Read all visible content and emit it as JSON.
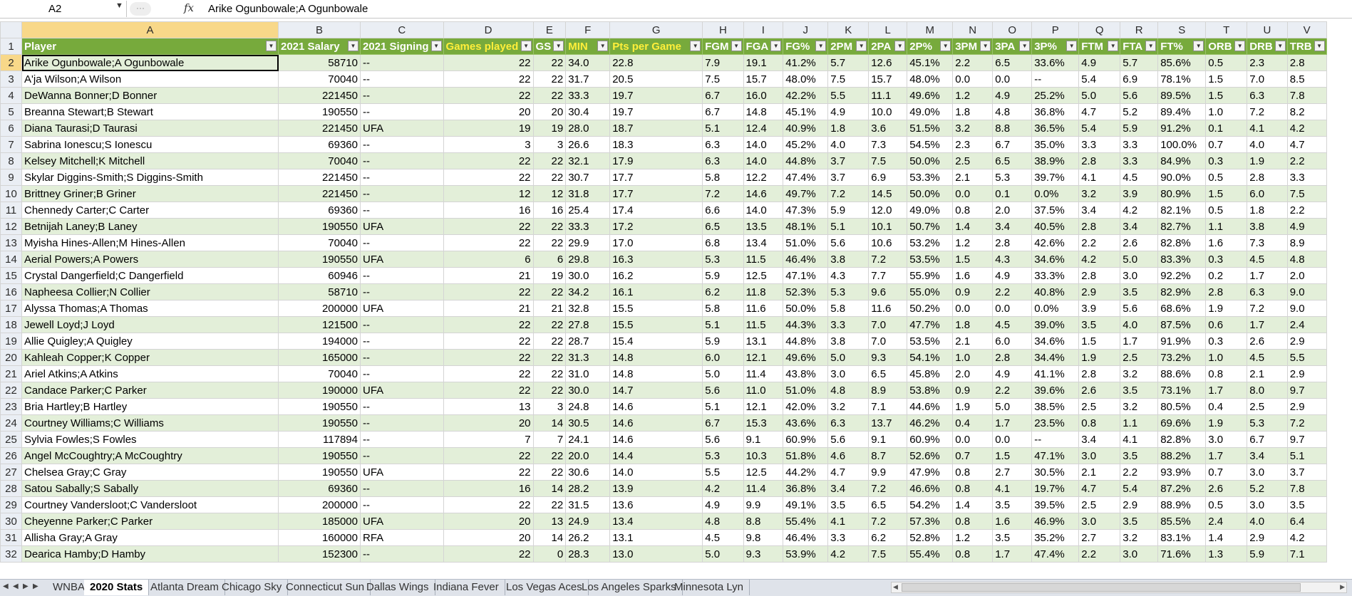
{
  "name_box": "A2",
  "formula_dots": "···",
  "fx_label": "fx",
  "formula_text": "Arike Ogunbowale;A Ogunbowale",
  "col_letters": [
    "A",
    "B",
    "C",
    "D",
    "E",
    "F",
    "G",
    "H",
    "I",
    "J",
    "K",
    "L",
    "M",
    "N",
    "O",
    "P",
    "Q",
    "R",
    "S",
    "T",
    "U",
    "V"
  ],
  "headers": [
    "Player",
    "2021 Salary",
    "2021 Signing",
    "Games played",
    "GS",
    "MIN",
    "Pts per Game",
    "FGM",
    "FGA",
    "FG%",
    "2PM",
    "2PA",
    "2P%",
    "3PM",
    "3PA",
    "3P%",
    "FTM",
    "FTA",
    "FT%",
    "ORB",
    "DRB",
    "TRB"
  ],
  "yellow_headers": [
    3,
    5,
    6
  ],
  "rows": [
    [
      "Arike Ogunbowale;A Ogunbowale",
      "58710",
      "--",
      "22",
      "22",
      "34.0",
      "22.8",
      "7.9",
      "19.1",
      "41.2%",
      "5.7",
      "12.6",
      "45.1%",
      "2.2",
      "6.5",
      "33.6%",
      "4.9",
      "5.7",
      "85.6%",
      "0.5",
      "2.3",
      "2.8"
    ],
    [
      "A'ja Wilson;A Wilson",
      "70040",
      "--",
      "22",
      "22",
      "31.7",
      "20.5",
      "7.5",
      "15.7",
      "48.0%",
      "7.5",
      "15.7",
      "48.0%",
      "0.0",
      "0.0",
      "--",
      "5.4",
      "6.9",
      "78.1%",
      "1.5",
      "7.0",
      "8.5"
    ],
    [
      "DeWanna Bonner;D Bonner",
      "221450",
      "--",
      "22",
      "22",
      "33.3",
      "19.7",
      "6.7",
      "16.0",
      "42.2%",
      "5.5",
      "11.1",
      "49.6%",
      "1.2",
      "4.9",
      "25.2%",
      "5.0",
      "5.6",
      "89.5%",
      "1.5",
      "6.3",
      "7.8"
    ],
    [
      "Breanna Stewart;B Stewart",
      "190550",
      "--",
      "20",
      "20",
      "30.4",
      "19.7",
      "6.7",
      "14.8",
      "45.1%",
      "4.9",
      "10.0",
      "49.0%",
      "1.8",
      "4.8",
      "36.8%",
      "4.7",
      "5.2",
      "89.4%",
      "1.0",
      "7.2",
      "8.2"
    ],
    [
      "Diana Taurasi;D Taurasi",
      "221450",
      "UFA",
      "19",
      "19",
      "28.0",
      "18.7",
      "5.1",
      "12.4",
      "40.9%",
      "1.8",
      "3.6",
      "51.5%",
      "3.2",
      "8.8",
      "36.5%",
      "5.4",
      "5.9",
      "91.2%",
      "0.1",
      "4.1",
      "4.2"
    ],
    [
      "Sabrina Ionescu;S Ionescu",
      "69360",
      "--",
      "3",
      "3",
      "26.6",
      "18.3",
      "6.3",
      "14.0",
      "45.2%",
      "4.0",
      "7.3",
      "54.5%",
      "2.3",
      "6.7",
      "35.0%",
      "3.3",
      "3.3",
      "100.0%",
      "0.7",
      "4.0",
      "4.7"
    ],
    [
      "Kelsey Mitchell;K Mitchell",
      "70040",
      "--",
      "22",
      "22",
      "32.1",
      "17.9",
      "6.3",
      "14.0",
      "44.8%",
      "3.7",
      "7.5",
      "50.0%",
      "2.5",
      "6.5",
      "38.9%",
      "2.8",
      "3.3",
      "84.9%",
      "0.3",
      "1.9",
      "2.2"
    ],
    [
      "Skylar Diggins-Smith;S Diggins-Smith",
      "221450",
      "--",
      "22",
      "22",
      "30.7",
      "17.7",
      "5.8",
      "12.2",
      "47.4%",
      "3.7",
      "6.9",
      "53.3%",
      "2.1",
      "5.3",
      "39.7%",
      "4.1",
      "4.5",
      "90.0%",
      "0.5",
      "2.8",
      "3.3"
    ],
    [
      "Brittney Griner;B Griner",
      "221450",
      "--",
      "12",
      "12",
      "31.8",
      "17.7",
      "7.2",
      "14.6",
      "49.7%",
      "7.2",
      "14.5",
      "50.0%",
      "0.0",
      "0.1",
      "0.0%",
      "3.2",
      "3.9",
      "80.9%",
      "1.5",
      "6.0",
      "7.5"
    ],
    [
      "Chennedy Carter;C Carter",
      "69360",
      "--",
      "16",
      "16",
      "25.4",
      "17.4",
      "6.6",
      "14.0",
      "47.3%",
      "5.9",
      "12.0",
      "49.0%",
      "0.8",
      "2.0",
      "37.5%",
      "3.4",
      "4.2",
      "82.1%",
      "0.5",
      "1.8",
      "2.2"
    ],
    [
      "Betnijah Laney;B Laney",
      "190550",
      "UFA",
      "22",
      "22",
      "33.3",
      "17.2",
      "6.5",
      "13.5",
      "48.1%",
      "5.1",
      "10.1",
      "50.7%",
      "1.4",
      "3.4",
      "40.5%",
      "2.8",
      "3.4",
      "82.7%",
      "1.1",
      "3.8",
      "4.9"
    ],
    [
      "Myisha Hines-Allen;M Hines-Allen",
      "70040",
      "--",
      "22",
      "22",
      "29.9",
      "17.0",
      "6.8",
      "13.4",
      "51.0%",
      "5.6",
      "10.6",
      "53.2%",
      "1.2",
      "2.8",
      "42.6%",
      "2.2",
      "2.6",
      "82.8%",
      "1.6",
      "7.3",
      "8.9"
    ],
    [
      "Aerial Powers;A Powers",
      "190550",
      "UFA",
      "6",
      "6",
      "29.8",
      "16.3",
      "5.3",
      "11.5",
      "46.4%",
      "3.8",
      "7.2",
      "53.5%",
      "1.5",
      "4.3",
      "34.6%",
      "4.2",
      "5.0",
      "83.3%",
      "0.3",
      "4.5",
      "4.8"
    ],
    [
      "Crystal Dangerfield;C Dangerfield",
      "60946",
      "--",
      "21",
      "19",
      "30.0",
      "16.2",
      "5.9",
      "12.5",
      "47.1%",
      "4.3",
      "7.7",
      "55.9%",
      "1.6",
      "4.9",
      "33.3%",
      "2.8",
      "3.0",
      "92.2%",
      "0.2",
      "1.7",
      "2.0"
    ],
    [
      "Napheesa Collier;N Collier",
      "58710",
      "--",
      "22",
      "22",
      "34.2",
      "16.1",
      "6.2",
      "11.8",
      "52.3%",
      "5.3",
      "9.6",
      "55.0%",
      "0.9",
      "2.2",
      "40.8%",
      "2.9",
      "3.5",
      "82.9%",
      "2.8",
      "6.3",
      "9.0"
    ],
    [
      "Alyssa Thomas;A Thomas",
      "200000",
      "UFA",
      "21",
      "21",
      "32.8",
      "15.5",
      "5.8",
      "11.6",
      "50.0%",
      "5.8",
      "11.6",
      "50.2%",
      "0.0",
      "0.0",
      "0.0%",
      "3.9",
      "5.6",
      "68.6%",
      "1.9",
      "7.2",
      "9.0"
    ],
    [
      "Jewell Loyd;J Loyd",
      "121500",
      "--",
      "22",
      "22",
      "27.8",
      "15.5",
      "5.1",
      "11.5",
      "44.3%",
      "3.3",
      "7.0",
      "47.7%",
      "1.8",
      "4.5",
      "39.0%",
      "3.5",
      "4.0",
      "87.5%",
      "0.6",
      "1.7",
      "2.4"
    ],
    [
      "Allie Quigley;A Quigley",
      "194000",
      "--",
      "22",
      "22",
      "28.7",
      "15.4",
      "5.9",
      "13.1",
      "44.8%",
      "3.8",
      "7.0",
      "53.5%",
      "2.1",
      "6.0",
      "34.6%",
      "1.5",
      "1.7",
      "91.9%",
      "0.3",
      "2.6",
      "2.9"
    ],
    [
      "Kahleah Copper;K Copper",
      "165000",
      "--",
      "22",
      "22",
      "31.3",
      "14.8",
      "6.0",
      "12.1",
      "49.6%",
      "5.0",
      "9.3",
      "54.1%",
      "1.0",
      "2.8",
      "34.4%",
      "1.9",
      "2.5",
      "73.2%",
      "1.0",
      "4.5",
      "5.5"
    ],
    [
      "Ariel Atkins;A Atkins",
      "70040",
      "--",
      "22",
      "22",
      "31.0",
      "14.8",
      "5.0",
      "11.4",
      "43.8%",
      "3.0",
      "6.5",
      "45.8%",
      "2.0",
      "4.9",
      "41.1%",
      "2.8",
      "3.2",
      "88.6%",
      "0.8",
      "2.1",
      "2.9"
    ],
    [
      "Candace Parker;C Parker",
      "190000",
      "UFA",
      "22",
      "22",
      "30.0",
      "14.7",
      "5.6",
      "11.0",
      "51.0%",
      "4.8",
      "8.9",
      "53.8%",
      "0.9",
      "2.2",
      "39.6%",
      "2.6",
      "3.5",
      "73.1%",
      "1.7",
      "8.0",
      "9.7"
    ],
    [
      "Bria Hartley;B Hartley",
      "190550",
      "--",
      "13",
      "3",
      "24.8",
      "14.6",
      "5.1",
      "12.1",
      "42.0%",
      "3.2",
      "7.1",
      "44.6%",
      "1.9",
      "5.0",
      "38.5%",
      "2.5",
      "3.2",
      "80.5%",
      "0.4",
      "2.5",
      "2.9"
    ],
    [
      "Courtney Williams;C Williams",
      "190550",
      "--",
      "20",
      "14",
      "30.5",
      "14.6",
      "6.7",
      "15.3",
      "43.6%",
      "6.3",
      "13.7",
      "46.2%",
      "0.4",
      "1.7",
      "23.5%",
      "0.8",
      "1.1",
      "69.6%",
      "1.9",
      "5.3",
      "7.2"
    ],
    [
      "Sylvia Fowles;S Fowles",
      "117894",
      "--",
      "7",
      "7",
      "24.1",
      "14.6",
      "5.6",
      "9.1",
      "60.9%",
      "5.6",
      "9.1",
      "60.9%",
      "0.0",
      "0.0",
      "--",
      "3.4",
      "4.1",
      "82.8%",
      "3.0",
      "6.7",
      "9.7"
    ],
    [
      "Angel McCoughtry;A McCoughtry",
      "190550",
      "--",
      "22",
      "22",
      "20.0",
      "14.4",
      "5.3",
      "10.3",
      "51.8%",
      "4.6",
      "8.7",
      "52.6%",
      "0.7",
      "1.5",
      "47.1%",
      "3.0",
      "3.5",
      "88.2%",
      "1.7",
      "3.4",
      "5.1"
    ],
    [
      "Chelsea Gray;C Gray",
      "190550",
      "UFA",
      "22",
      "22",
      "30.6",
      "14.0",
      "5.5",
      "12.5",
      "44.2%",
      "4.7",
      "9.9",
      "47.9%",
      "0.8",
      "2.7",
      "30.5%",
      "2.1",
      "2.2",
      "93.9%",
      "0.7",
      "3.0",
      "3.7"
    ],
    [
      "Satou Sabally;S Sabally",
      "69360",
      "--",
      "16",
      "14",
      "28.2",
      "13.9",
      "4.2",
      "11.4",
      "36.8%",
      "3.4",
      "7.2",
      "46.6%",
      "0.8",
      "4.1",
      "19.7%",
      "4.7",
      "5.4",
      "87.2%",
      "2.6",
      "5.2",
      "7.8"
    ],
    [
      "Courtney Vandersloot;C Vandersloot",
      "200000",
      "--",
      "22",
      "22",
      "31.5",
      "13.6",
      "4.9",
      "9.9",
      "49.1%",
      "3.5",
      "6.5",
      "54.2%",
      "1.4",
      "3.5",
      "39.5%",
      "2.5",
      "2.9",
      "88.9%",
      "0.5",
      "3.0",
      "3.5"
    ],
    [
      "Cheyenne Parker;C Parker",
      "185000",
      "UFA",
      "20",
      "13",
      "24.9",
      "13.4",
      "4.8",
      "8.8",
      "55.4%",
      "4.1",
      "7.2",
      "57.3%",
      "0.8",
      "1.6",
      "46.9%",
      "3.0",
      "3.5",
      "85.5%",
      "2.4",
      "4.0",
      "6.4"
    ],
    [
      "Allisha Gray;A Gray",
      "160000",
      "RFA",
      "20",
      "14",
      "26.2",
      "13.1",
      "4.5",
      "9.8",
      "46.4%",
      "3.3",
      "6.2",
      "52.8%",
      "1.2",
      "3.5",
      "35.2%",
      "2.7",
      "3.2",
      "83.1%",
      "1.4",
      "2.9",
      "4.2"
    ],
    [
      "Dearica Hamby;D Hamby",
      "152300",
      "--",
      "22",
      "0",
      "28.3",
      "13.0",
      "5.0",
      "9.3",
      "53.9%",
      "4.2",
      "7.5",
      "55.4%",
      "0.8",
      "1.7",
      "47.4%",
      "2.2",
      "3.0",
      "71.6%",
      "1.3",
      "5.9",
      "7.1"
    ]
  ],
  "sheet_tabs": [
    "WNBA",
    "2020 Stats",
    "Atlanta Dream",
    "Chicago Sky",
    "Connecticut Sun",
    "Dallas Wings",
    "Indiana Fever",
    "Los Vegas Aces",
    "Los Angeles Sparks",
    "Minnesota Lyn"
  ],
  "active_tab": "2020 Stats",
  "colors": {
    "header_green": "#77aa3c",
    "band_green": "#e3efd9",
    "header_yellow_text": "#ffef3a",
    "selected_header": "#f8d889"
  }
}
